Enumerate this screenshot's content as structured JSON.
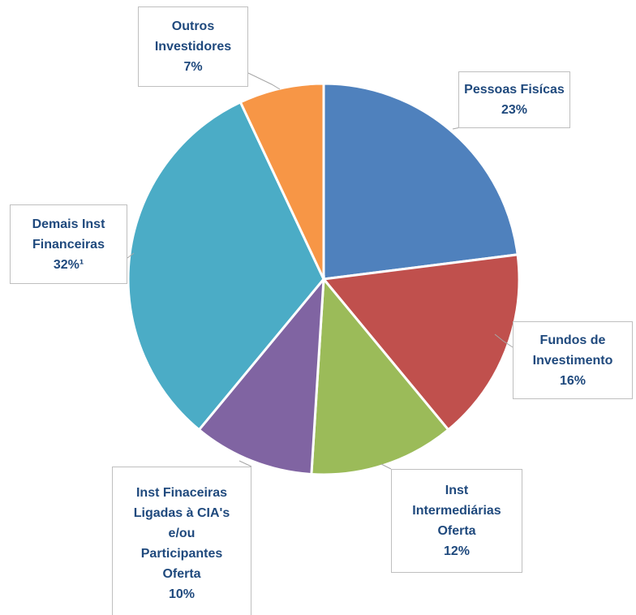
{
  "chart_data": {
    "type": "pie",
    "categories": [
      "Pessoas Fisícas",
      "Fundos de Investimento",
      "Inst Intermediárias Oferta",
      "Inst Finaceiras Ligadas à CIA's e/ou Participantes Oferta",
      "Demais Inst Financeiras",
      "Outros Investidores"
    ],
    "values": [
      23,
      16,
      12,
      10,
      32,
      7
    ],
    "value_labels": [
      "23%",
      "16%",
      "12%",
      "10%",
      "32%¹",
      "7%"
    ],
    "colors": [
      "#4f81bd",
      "#c0504d",
      "#9bbb59",
      "#8064a2",
      "#4bacc6",
      "#f79646"
    ]
  }
}
